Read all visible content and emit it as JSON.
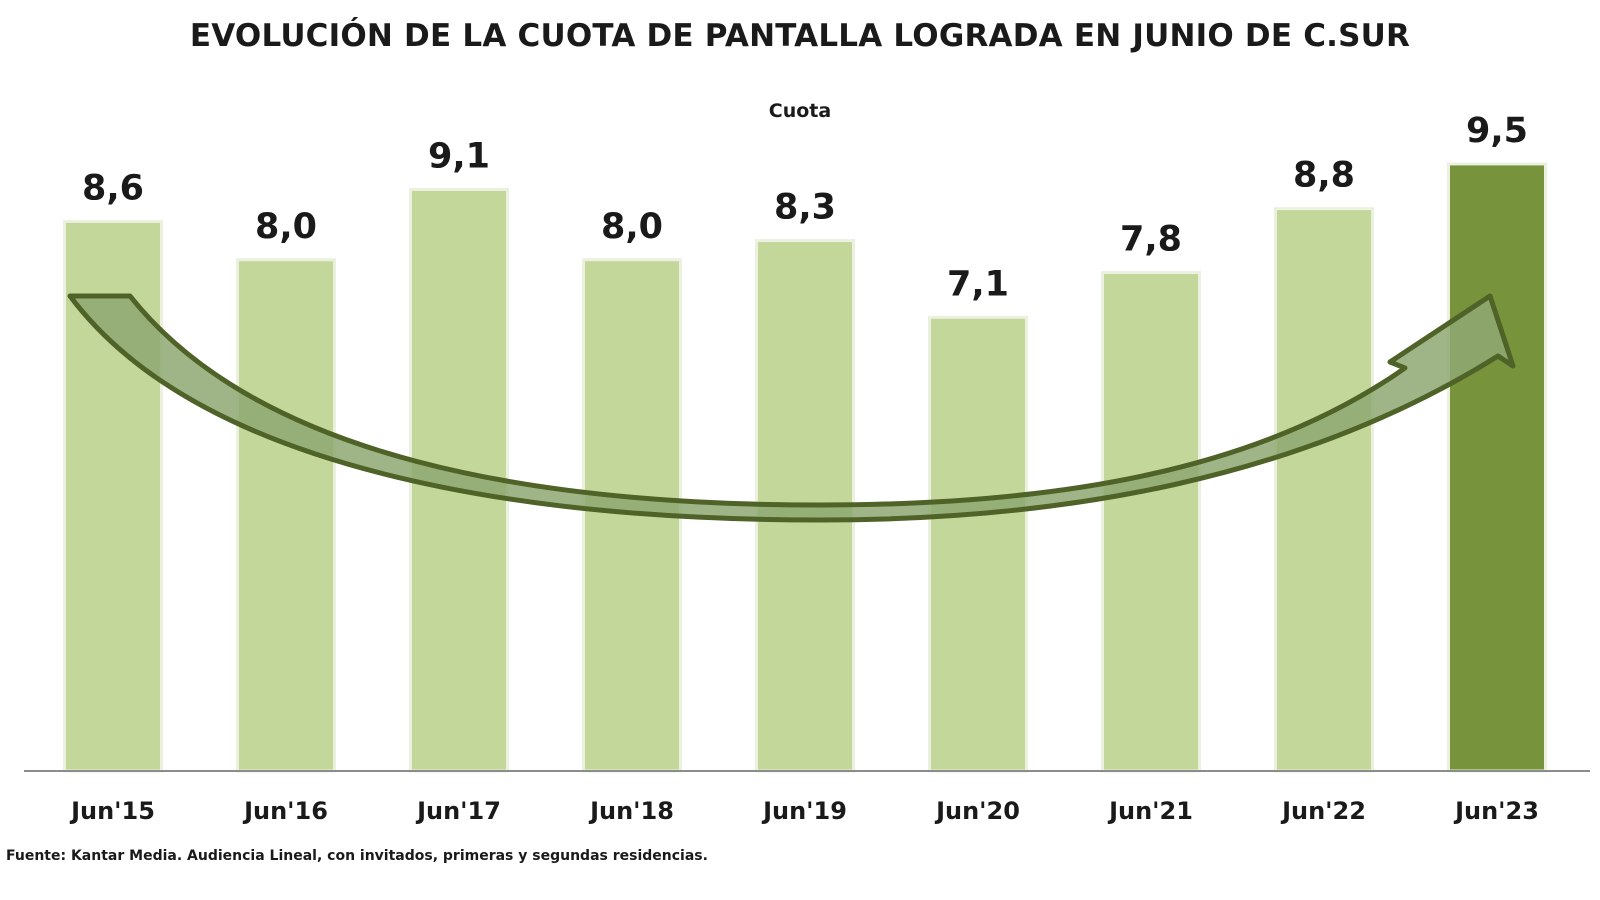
{
  "chart_data": {
    "type": "bar",
    "title": "EVOLUCIÓN DE LA CUOTA DE PANTALLA LOGRADA EN JUNIO DE C.SUR",
    "subtitle": "Cuota",
    "categories": [
      "Jun'15",
      "Jun'16",
      "Jun'17",
      "Jun'18",
      "Jun'19",
      "Jun'20",
      "Jun'21",
      "Jun'22",
      "Jun'23"
    ],
    "values": [
      8.6,
      8.0,
      9.1,
      8.0,
      8.3,
      7.1,
      7.8,
      8.8,
      9.5
    ],
    "value_labels": [
      "8,6",
      "8,0",
      "9,1",
      "8,0",
      "8,3",
      "7,1",
      "7,8",
      "8,8",
      "9,5"
    ],
    "ylim": [
      0,
      10.5
    ],
    "grid": false,
    "highlight_index": 8,
    "colors": {
      "bar": "#c4d79b",
      "bar_highlight": "#77933c",
      "bar_border": "#ebf1de",
      "arrow_fill": "#8ea872",
      "arrow_stroke": "#4f6228",
      "axis": "#8c8c8c"
    },
    "annotation": "u-shaped-trend-arrow",
    "source": "Fuente: Kantar Media. Audiencia Lineal, con invitados, primeras y segundas residencias."
  }
}
